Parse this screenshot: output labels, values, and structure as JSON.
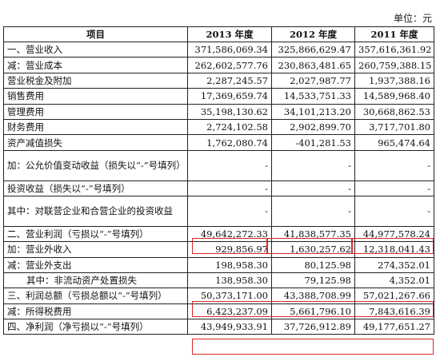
{
  "top_fragment": "",
  "unit_text": "单位：元",
  "table": {
    "headers": [
      "项目",
      "2013 年度",
      "2012 年度",
      "2011 年度"
    ],
    "rows": [
      {
        "label": "一、营业收入",
        "v2013": "371,586,069.34",
        "v2012": "325,866,629.47",
        "v2011": "357,616,361.92"
      },
      {
        "label": "减：营业成本",
        "v2013": "262,602,577.76",
        "v2012": "230,863,481.65",
        "v2011": "260,759,388.15"
      },
      {
        "label": "营业税金及附加",
        "v2013": "2,287,245.57",
        "v2012": "2,027,987.77",
        "v2011": "1,937,388.16"
      },
      {
        "label": "销售费用",
        "v2013": "17,369,659.74",
        "v2012": "14,533,751.33",
        "v2011": "14,589,968.40"
      },
      {
        "label": "管理费用",
        "v2013": "35,198,130.62",
        "v2012": "34,101,213.20",
        "v2011": "30,668,862.53"
      },
      {
        "label": "财务费用",
        "v2013": "2,724,102.58",
        "v2012": "2,902,899.70",
        "v2011": "3,717,701.80"
      },
      {
        "label": "资产减值损失",
        "v2013": "1,762,080.74",
        "v2012": "-401,281.53",
        "v2011": "965,474.64"
      },
      {
        "label": "加：公允价值变动收益（损失以“-”号填列）",
        "v2013": "-",
        "v2012": "-",
        "v2011": "-"
      },
      {
        "label": "投资收益（损失以“-”号填列）",
        "v2013": "-",
        "v2012": "-",
        "v2011": "-"
      },
      {
        "label": "其中：对联营企业和合营企业的投资收益",
        "v2013": "-",
        "v2012": "-",
        "v2011": "-"
      },
      {
        "label": "二、营业利润（亏损以“-”号填列）",
        "v2013": "49,642,272.33",
        "v2012": "41,838,577.35",
        "v2011": "44,977,578.24"
      },
      {
        "label": "加：营业外收入",
        "v2013": "929,856.97",
        "v2012": "1,630,257.62",
        "v2011": "12,318,041.43"
      },
      {
        "label": "减：营业外支出",
        "v2013": "198,958.30",
        "v2012": "80,125.98",
        "v2011": "274,352.01"
      },
      {
        "label": "其中：非流动资产处置损失",
        "v2013": "138,958.30",
        "v2012": "79,125.98",
        "v2011": "4,352.01"
      },
      {
        "label": "三、利润总额（亏损总额以“-”号填列）",
        "v2013": "50,373,171.00",
        "v2012": "43,388,708.99",
        "v2011": "57,021,267.66"
      },
      {
        "label": "减：所得税费用",
        "v2013": "6,423,237.09",
        "v2012": "5,661,796.10",
        "v2011": "7,843,616.39"
      },
      {
        "label": "四、净利润（净亏损以“-”号填列）",
        "v2013": "43,949,933.91",
        "v2012": "37,726,912.89",
        "v2011": "49,177,651.27"
      }
    ]
  },
  "highlight_color": "#d42a2a"
}
